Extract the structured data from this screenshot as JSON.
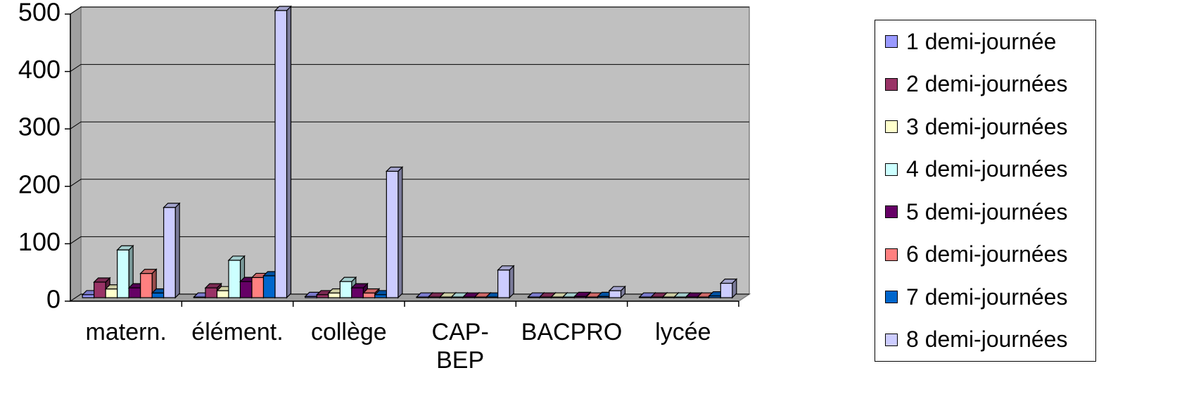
{
  "chart_data": {
    "type": "bar3d",
    "categories": [
      "matern.",
      "élément.",
      "collège",
      "CAP-BEP",
      "BACPRO",
      "lycée"
    ],
    "series": [
      {
        "name": "1 demi-journée",
        "color": "#9999ff",
        "values": [
          5,
          1,
          2,
          1,
          1,
          1
        ]
      },
      {
        "name": "2 demi-journées",
        "color": "#993366",
        "values": [
          27,
          17,
          5,
          1,
          1,
          1
        ]
      },
      {
        "name": "3 demi-journées",
        "color": "#ffffcc",
        "values": [
          15,
          12,
          8,
          1,
          1,
          1
        ]
      },
      {
        "name": "4 demi-journées",
        "color": "#ccffff",
        "values": [
          83,
          65,
          28,
          1,
          1,
          1
        ]
      },
      {
        "name": "5 demi-journées",
        "color": "#660066",
        "values": [
          17,
          28,
          17,
          1,
          2,
          1
        ]
      },
      {
        "name": "6 demi-journées",
        "color": "#ff8080",
        "values": [
          42,
          35,
          8,
          1,
          1,
          1
        ]
      },
      {
        "name": "7 demi-journées",
        "color": "#0066cc",
        "values": [
          8,
          38,
          5,
          1,
          2,
          3
        ]
      },
      {
        "name": "8 demi-journées",
        "color": "#ccccff",
        "values": [
          157,
          500,
          220,
          48,
          12,
          25
        ]
      }
    ],
    "ylim": [
      0,
      500
    ],
    "yticks": [
      0,
      100,
      200,
      300,
      400,
      500
    ],
    "grid": true,
    "legend": "right"
  }
}
